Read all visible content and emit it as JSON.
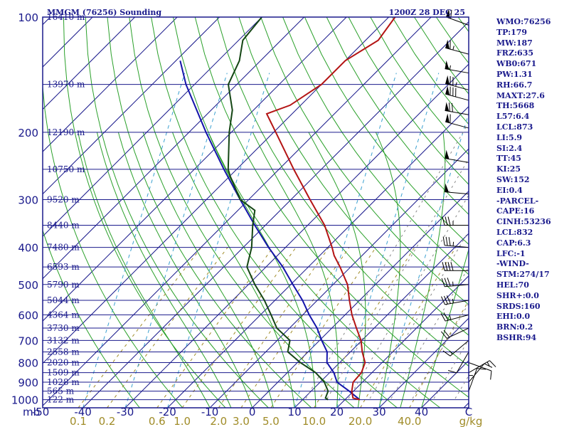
{
  "header": {
    "station_title": "MMGM (76256) Sounding",
    "valid_time": "1200Z 28 DEC 25"
  },
  "indices": [
    "WMO:76256",
    "TP:179",
    "MW:187",
    "FRZ:635",
    "WB0:671",
    "PW:1.31",
    "RH:66.7",
    "MAXT:27.6",
    "TH:5668",
    "L57:6.4",
    "LCL:873",
    "LI:5.9",
    "SI:2.4",
    "TT:45",
    "KI:25",
    "SW:152",
    "EI:0.4",
    "-PARCEL-",
    "CAPE:16",
    "CINH:53236",
    "LCL:832",
    "CAP:6.3",
    "LFC:-1",
    "-WIND-",
    "STM:274/17",
    "HEL:70",
    "SHR+:0.0",
    "SRDS:160",
    "EHI:0.0",
    "BRN:0.2",
    "BSHR:94"
  ],
  "colors": {
    "frame": "#1a1a8c",
    "isobar": "#1a1a8c",
    "isotherm": "#1a1a8c",
    "dry_adiabat": "#2aa02a",
    "moist_adiabat": "#2aa02a",
    "mixing_ratio": "#a08c28",
    "temperature": "#b41414",
    "dewpoint": "#144614",
    "parcel": "#1414aa",
    "wind_barb": "#000000",
    "hodograph_dash": "#888888",
    "wetbulb_dash": "#3aa0d0"
  },
  "chart_data": {
    "type": "skew-t",
    "pressure_unit_label": "mb",
    "pressure_levels": [
      100,
      200,
      300,
      400,
      500,
      600,
      700,
      800,
      900,
      1000
    ],
    "pressure_range": [
      100,
      1050
    ],
    "height_labels": [
      {
        "p": 100,
        "label": "16410 m"
      },
      {
        "p": 150,
        "label": "13970 m"
      },
      {
        "p": 200,
        "label": "12190 m"
      },
      {
        "p": 250,
        "label": "10750 m"
      },
      {
        "p": 300,
        "label": "9520 m"
      },
      {
        "p": 350,
        "label": "8440 m"
      },
      {
        "p": 400,
        "label": "7480 m"
      },
      {
        "p": 450,
        "label": "6593 m"
      },
      {
        "p": 500,
        "label": "5790 m"
      },
      {
        "p": 550,
        "label": "5044 m"
      },
      {
        "p": 600,
        "label": "4364 m"
      },
      {
        "p": 650,
        "label": "3730 m"
      },
      {
        "p": 700,
        "label": "3132 m"
      },
      {
        "p": 750,
        "label": "2558 m"
      },
      {
        "p": 800,
        "label": "2020 m"
      },
      {
        "p": 850,
        "label": "1509 m"
      },
      {
        "p": 900,
        "label": "1028 m"
      },
      {
        "p": 950,
        "label": "565 m"
      },
      {
        "p": 1000,
        "label": "122 m"
      }
    ],
    "temperature_ticks": [
      "-50",
      "-40",
      "-30",
      "-20",
      "-10",
      "0",
      "10",
      "20",
      "30",
      "40",
      "C"
    ],
    "temperature_ticks_values": [
      -50,
      -40,
      -30,
      -20,
      -10,
      0,
      10,
      20,
      30,
      40
    ],
    "mixing_ratio_labels": [
      "0.1",
      "0.2",
      "0.6",
      "1.0",
      "2.0",
      "3.0",
      "5.0",
      "10.0",
      "20.0",
      "40.0",
      "g/kg"
    ],
    "mixing_ratio_values": [
      0.1,
      0.2,
      0.6,
      1.0,
      2.0,
      3.0,
      5.0,
      10.0,
      20.0,
      40.0
    ],
    "temperature_profile": [
      {
        "p": 1000,
        "t": 23.5
      },
      {
        "p": 990,
        "t": 21.5
      },
      {
        "p": 950,
        "t": 19.6
      },
      {
        "p": 900,
        "t": 17.8
      },
      {
        "p": 850,
        "t": 17.5
      },
      {
        "p": 800,
        "t": 16.0
      },
      {
        "p": 750,
        "t": 12.8
      },
      {
        "p": 700,
        "t": 9.8
      },
      {
        "p": 650,
        "t": 5.8
      },
      {
        "p": 600,
        "t": 1.6
      },
      {
        "p": 550,
        "t": -2.4
      },
      {
        "p": 500,
        "t": -6.6
      },
      {
        "p": 450,
        "t": -12.5
      },
      {
        "p": 420,
        "t": -16.6
      },
      {
        "p": 400,
        "t": -19.0
      },
      {
        "p": 350,
        "t": -26.0
      },
      {
        "p": 300,
        "t": -35.5
      },
      {
        "p": 250,
        "t": -46.5
      },
      {
        "p": 200,
        "t": -59.5
      },
      {
        "p": 179,
        "t": -66.0
      },
      {
        "p": 170,
        "t": -62.5
      },
      {
        "p": 150,
        "t": -60.0
      },
      {
        "p": 130,
        "t": -60.0
      },
      {
        "p": 115,
        "t": -57.0
      },
      {
        "p": 100,
        "t": -58.5
      }
    ],
    "dewpoint_profile": [
      {
        "p": 1000,
        "td": 16.0
      },
      {
        "p": 990,
        "td": 15.0
      },
      {
        "p": 950,
        "td": 14.0
      },
      {
        "p": 900,
        "td": 11.0
      },
      {
        "p": 850,
        "td": 6.7
      },
      {
        "p": 800,
        "td": 0.7
      },
      {
        "p": 750,
        "td": -4.8
      },
      {
        "p": 700,
        "td": -7.0
      },
      {
        "p": 650,
        "td": -13.0
      },
      {
        "p": 600,
        "td": -17.5
      },
      {
        "p": 550,
        "td": -22.5
      },
      {
        "p": 500,
        "td": -28.5
      },
      {
        "p": 450,
        "td": -34.5
      },
      {
        "p": 400,
        "td": -38.0
      },
      {
        "p": 350,
        "td": -43.0
      },
      {
        "p": 320,
        "td": -46.0
      },
      {
        "p": 300,
        "td": -52.0
      },
      {
        "p": 260,
        "td": -60.0
      },
      {
        "p": 250,
        "td": -62.0
      },
      {
        "p": 200,
        "td": -70.5
      },
      {
        "p": 175,
        "td": -75.0
      },
      {
        "p": 150,
        "td": -82.0
      },
      {
        "p": 130,
        "td": -85.0
      },
      {
        "p": 115,
        "td": -89.0
      },
      {
        "p": 100,
        "td": -90.0
      }
    ],
    "parcel_profile": [
      {
        "p": 1000,
        "t": 23.5
      },
      {
        "p": 950,
        "t": 19.0
      },
      {
        "p": 900,
        "t": 14.0
      },
      {
        "p": 850,
        "t": 11.0
      },
      {
        "p": 800,
        "t": 7.0
      },
      {
        "p": 750,
        "t": 4.5
      },
      {
        "p": 700,
        "t": 0.5
      },
      {
        "p": 650,
        "t": -3.5
      },
      {
        "p": 600,
        "t": -8.5
      },
      {
        "p": 550,
        "t": -13.5
      },
      {
        "p": 500,
        "t": -19.5
      },
      {
        "p": 450,
        "t": -26.0
      },
      {
        "p": 400,
        "t": -34.0
      },
      {
        "p": 350,
        "t": -42.5
      },
      {
        "p": 300,
        "t": -52.0
      },
      {
        "p": 250,
        "t": -63.0
      },
      {
        "p": 200,
        "t": -76.0
      },
      {
        "p": 150,
        "t": -92.0
      },
      {
        "p": 130,
        "t": -99.0
      }
    ],
    "wind_barbs": [
      {
        "p": 105,
        "dir": 290,
        "spd": 60
      },
      {
        "p": 125,
        "dir": 285,
        "spd": 65
      },
      {
        "p": 140,
        "dir": 280,
        "spd": 55
      },
      {
        "p": 155,
        "dir": 285,
        "spd": 75
      },
      {
        "p": 165,
        "dir": 285,
        "spd": 80
      },
      {
        "p": 180,
        "dir": 280,
        "spd": 70
      },
      {
        "p": 195,
        "dir": 285,
        "spd": 60
      },
      {
        "p": 240,
        "dir": 280,
        "spd": 50
      },
      {
        "p": 290,
        "dir": 275,
        "spd": 50
      },
      {
        "p": 350,
        "dir": 270,
        "spd": 35
      },
      {
        "p": 400,
        "dir": 275,
        "spd": 35
      },
      {
        "p": 460,
        "dir": 270,
        "spd": 40
      },
      {
        "p": 500,
        "dir": 265,
        "spd": 35
      },
      {
        "p": 550,
        "dir": 260,
        "spd": 35
      },
      {
        "p": 600,
        "dir": 255,
        "spd": 25
      },
      {
        "p": 650,
        "dir": 245,
        "spd": 20
      },
      {
        "p": 700,
        "dir": 230,
        "spd": 15
      },
      {
        "p": 750,
        "dir": 210,
        "spd": 10
      },
      {
        "p": 800,
        "dir": 110,
        "spd": 10
      },
      {
        "p": 850,
        "dir": 60,
        "spd": 15
      },
      {
        "p": 900,
        "dir": 40,
        "spd": 10
      },
      {
        "p": 950,
        "dir": 20,
        "spd": 10
      },
      {
        "p": 1000,
        "dir": 360,
        "spd": 5
      }
    ]
  }
}
